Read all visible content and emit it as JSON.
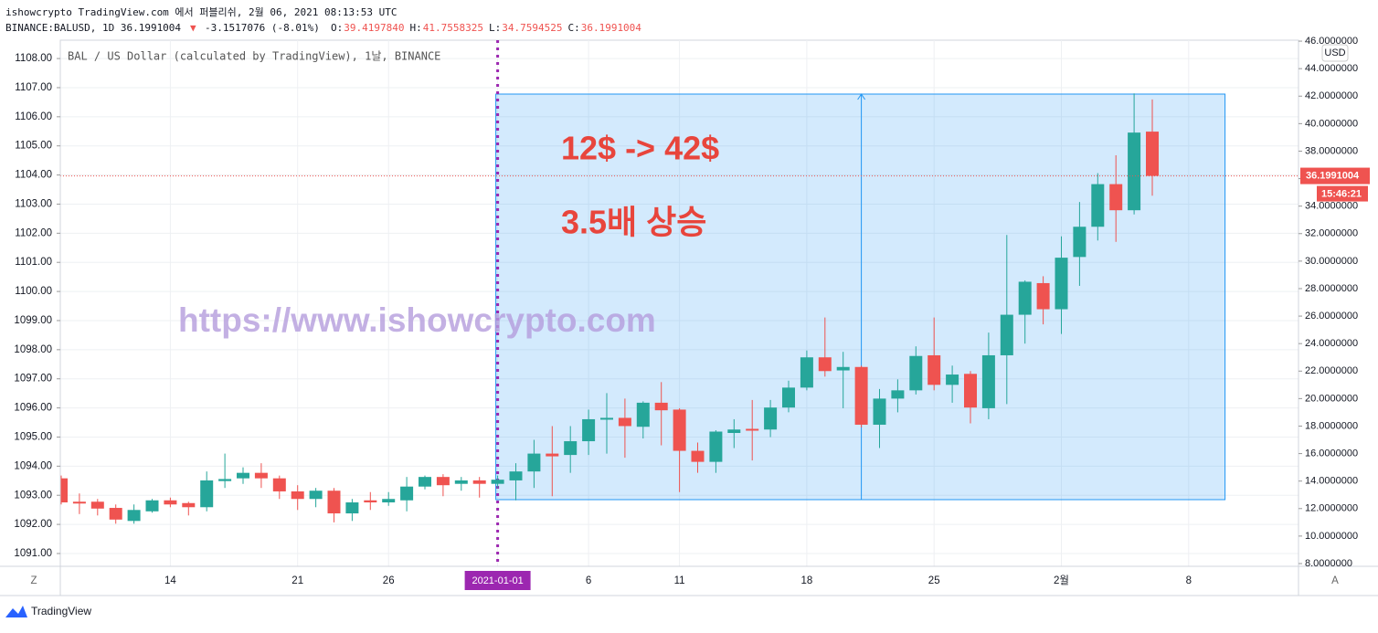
{
  "chart_data": {
    "type": "candlestick",
    "title": "ishowcrypto TradingView.com 에서 퍼블리쉬, 2월 06, 2021 08:13:53 UTC",
    "symbol_line": "BINANCE:BALUSD, 1D 36.1991004",
    "change": "▼",
    "change_value": "-3.1517076 (-8.01%)",
    "ohlc_labels": [
      "O:",
      "H:",
      "L:",
      "C:"
    ],
    "ohlc_values": [
      "39.4197840",
      "41.7558325",
      "34.7594525",
      "36.1991004"
    ],
    "legend": "BAL / US Dollar (calculated by TradingView), 1날, BINANCE",
    "currency": "USD",
    "price_tag": "36.1991004",
    "countdown": "15:46:21",
    "annotations": [
      "12$ -> 42$",
      "3.5배 상승"
    ],
    "watermark": "https://www.ishowcrypto.com",
    "buttons": [
      "Z",
      "A"
    ],
    "brand": "TradingView",
    "up_color": "#26a69a",
    "down_color": "#ef5350",
    "grid": true,
    "categories": [
      null,
      null,
      null,
      null,
      null,
      null,
      "14",
      null,
      null,
      null,
      null,
      null,
      null,
      "21",
      null,
      null,
      null,
      null,
      "26",
      null,
      null,
      null,
      null,
      null,
      "2021-01-01",
      null,
      null,
      null,
      null,
      "6",
      null,
      null,
      null,
      null,
      "11",
      null,
      null,
      null,
      null,
      null,
      null,
      "18",
      null,
      null,
      null,
      null,
      null,
      null,
      "25",
      null,
      null,
      null,
      null,
      null,
      null,
      "2월",
      null,
      null,
      null,
      null,
      null,
      null,
      "8"
    ],
    "open": [
      14.2,
      12.5,
      12.5,
      12.05,
      11.1,
      11.8,
      12.6,
      12.4,
      12.1,
      14.0,
      14.2,
      14.6,
      14.2,
      13.25,
      12.7,
      13.3,
      11.65,
      12.6,
      12.45,
      12.6,
      13.6,
      14.3,
      13.8,
      14.05,
      13.8,
      14.05,
      14.7,
      16.0,
      15.9,
      16.9,
      18.5,
      18.6,
      17.95,
      19.7,
      19.2,
      16.2,
      15.4,
      17.5,
      17.8,
      17.75,
      19.35,
      20.8,
      23.0,
      22.05,
      22.3,
      18.1,
      20.0,
      20.6,
      23.15,
      21.0,
      21.8,
      19.3,
      23.15,
      26.1,
      28.4,
      26.5,
      30.3,
      32.5,
      35.6,
      33.7,
      39.419784,
      null,
      null
    ],
    "high": [
      14.4,
      13.1,
      12.7,
      12.3,
      12.3,
      12.7,
      12.8,
      12.5,
      14.7,
      16.0,
      15.0,
      15.3,
      14.4,
      13.7,
      13.5,
      13.5,
      12.7,
      13.2,
      13.2,
      14.3,
      14.4,
      14.5,
      14.3,
      14.3,
      14.4,
      15.3,
      17.0,
      18.0,
      18.0,
      19.2,
      20.4,
      20.0,
      19.8,
      21.2,
      19.3,
      16.8,
      17.7,
      18.5,
      19.9,
      19.9,
      21.3,
      23.5,
      25.9,
      23.4,
      22.4,
      20.7,
      21.4,
      23.8,
      25.9,
      22.4,
      22.0,
      24.8,
      31.9,
      28.6,
      28.9,
      31.8,
      34.3,
      36.4,
      37.7,
      42.2,
      41.7558325,
      null,
      null
    ],
    "low": [
      12.3,
      11.6,
      11.5,
      10.9,
      10.9,
      11.7,
      12.1,
      11.5,
      11.8,
      13.5,
      13.8,
      13.5,
      12.7,
      11.9,
      12.1,
      11.0,
      11.1,
      11.9,
      12.2,
      11.8,
      13.4,
      12.9,
      13.3,
      12.8,
      13.5,
      12.6,
      13.5,
      12.9,
      14.6,
      15.9,
      16.0,
      15.7,
      17.1,
      16.6,
      13.2,
      14.6,
      14.6,
      16.4,
      15.5,
      17.2,
      19.0,
      20.6,
      21.6,
      19.3,
      17.9,
      16.4,
      19.0,
      20.3,
      20.6,
      19.7,
      18.2,
      18.5,
      19.6,
      24.0,
      25.4,
      24.7,
      28.2,
      31.5,
      31.4,
      33.4,
      34.7594525,
      null,
      null
    ],
    "close": [
      12.45,
      12.4,
      12.0,
      11.2,
      11.9,
      12.6,
      12.3,
      12.1,
      14.05,
      14.15,
      14.6,
      14.2,
      13.25,
      12.7,
      13.3,
      11.65,
      12.45,
      12.45,
      12.7,
      13.6,
      14.3,
      13.7,
      14.05,
      13.8,
      14.1,
      14.7,
      16.0,
      15.8,
      16.9,
      18.5,
      18.6,
      18.0,
      19.7,
      19.15,
      16.2,
      15.4,
      17.6,
      17.75,
      17.7,
      19.35,
      20.8,
      23.0,
      22.0,
      22.3,
      18.1,
      20.0,
      20.6,
      23.1,
      21.0,
      21.75,
      19.35,
      23.15,
      26.1,
      28.5,
      26.5,
      30.25,
      32.5,
      35.6,
      33.7,
      39.35,
      36.1991004,
      null,
      null
    ],
    "box": {
      "low": 12.65,
      "high": 42.15
    },
    "ylim": [
      1090.56,
      1108.63
    ],
    "yticks": [
      {
        "value": 1091,
        "label": "1091.00"
      },
      {
        "value": 1092,
        "label": "1092.00"
      },
      {
        "value": 1093,
        "label": "1093.00"
      },
      {
        "value": 1094,
        "label": "1094.00"
      },
      {
        "value": 1095,
        "label": "1095.00"
      },
      {
        "value": 1096,
        "label": "1096.00"
      },
      {
        "value": 1097,
        "label": "1097.00"
      },
      {
        "value": 1098,
        "label": "1098.00"
      },
      {
        "value": 1099,
        "label": "1099.00"
      },
      {
        "value": 1100,
        "label": "1100.00"
      },
      {
        "value": 1101,
        "label": "1101.00"
      },
      {
        "value": 1102,
        "label": "1102.00"
      },
      {
        "value": 1103,
        "label": "1103.00"
      },
      {
        "value": 1104,
        "label": "1104.00"
      },
      {
        "value": 1105,
        "label": "1105.00"
      },
      {
        "value": 1106,
        "label": "1106.00"
      },
      {
        "value": 1107,
        "label": "1107.00"
      },
      {
        "value": 1108,
        "label": "1108.00"
      }
    ],
    "y2lim": [
      7.8,
      46.07
    ],
    "y2ticks": [
      {
        "value": 8,
        "label": "8.0000000"
      },
      {
        "value": 10,
        "label": "10.0000000"
      },
      {
        "value": 12,
        "label": "12.0000000"
      },
      {
        "value": 14,
        "label": "14.0000000"
      },
      {
        "value": 16,
        "label": "16.0000000"
      },
      {
        "value": 18,
        "label": "18.0000000"
      },
      {
        "value": 20,
        "label": "20.0000000"
      },
      {
        "value": 22,
        "label": "22.0000000"
      },
      {
        "value": 24,
        "label": "24.0000000"
      },
      {
        "value": 26,
        "label": "26.0000000"
      },
      {
        "value": 28,
        "label": "28.0000000"
      },
      {
        "value": 30,
        "label": "30.0000000"
      },
      {
        "value": 32,
        "label": "32.0000000"
      },
      {
        "value": 34,
        "label": "34.0000000"
      },
      {
        "value": 36,
        "label": "36.0000000"
      },
      {
        "value": 38,
        "label": "38.0000000"
      },
      {
        "value": 40,
        "label": "40.0000000"
      },
      {
        "value": 42,
        "label": "42.0000000"
      },
      {
        "value": 44,
        "label": "44.0000000"
      },
      {
        "value": 46,
        "label": "46.0000000"
      }
    ]
  }
}
